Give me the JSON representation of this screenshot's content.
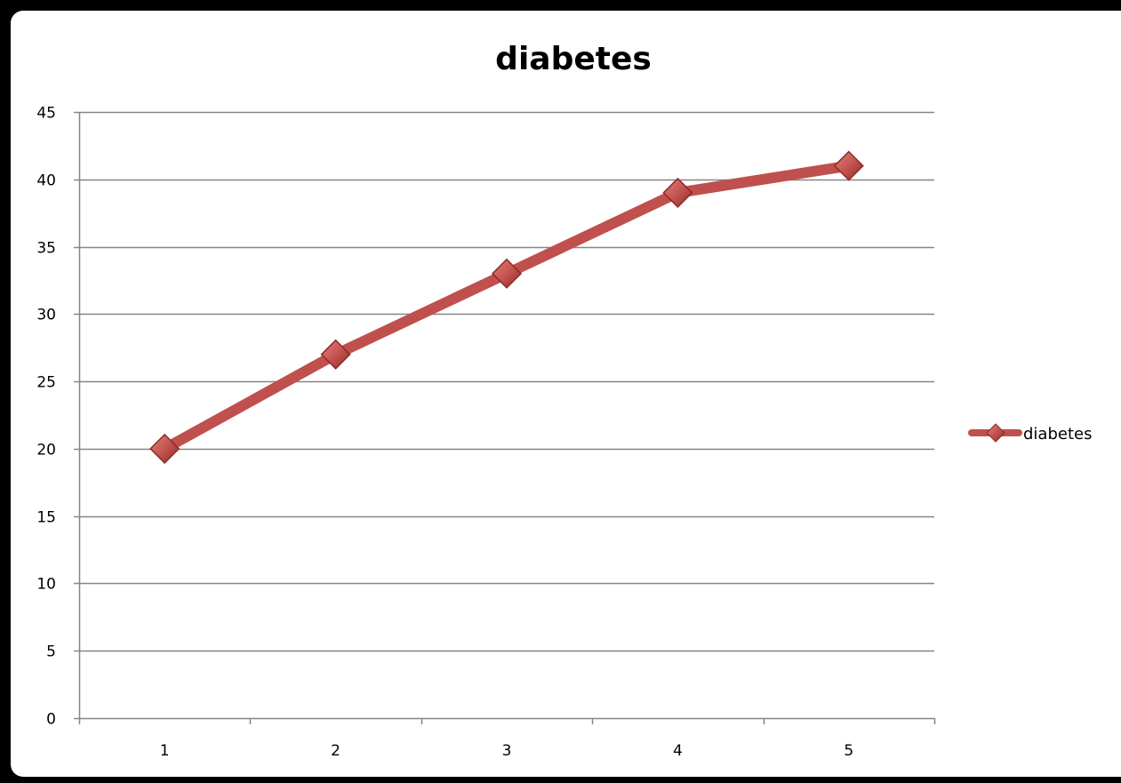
{
  "chart_data": {
    "type": "line",
    "title": "diabetes",
    "xlabel": "",
    "ylabel": "",
    "categories": [
      "1",
      "2",
      "3",
      "4",
      "5"
    ],
    "series": [
      {
        "name": "diabetes",
        "values": [
          20,
          27,
          33,
          39,
          41
        ]
      }
    ],
    "ylim": [
      0,
      45
    ],
    "yticks": [
      "0",
      "5",
      "10",
      "15",
      "20",
      "25",
      "30",
      "35",
      "40",
      "45"
    ],
    "grid": true,
    "legend_position": "right",
    "marker": "diamond",
    "colors": {
      "series": "#c0504d",
      "marker_dark": "#8c2a26",
      "grid": "#868686",
      "axis": "#868686"
    }
  }
}
